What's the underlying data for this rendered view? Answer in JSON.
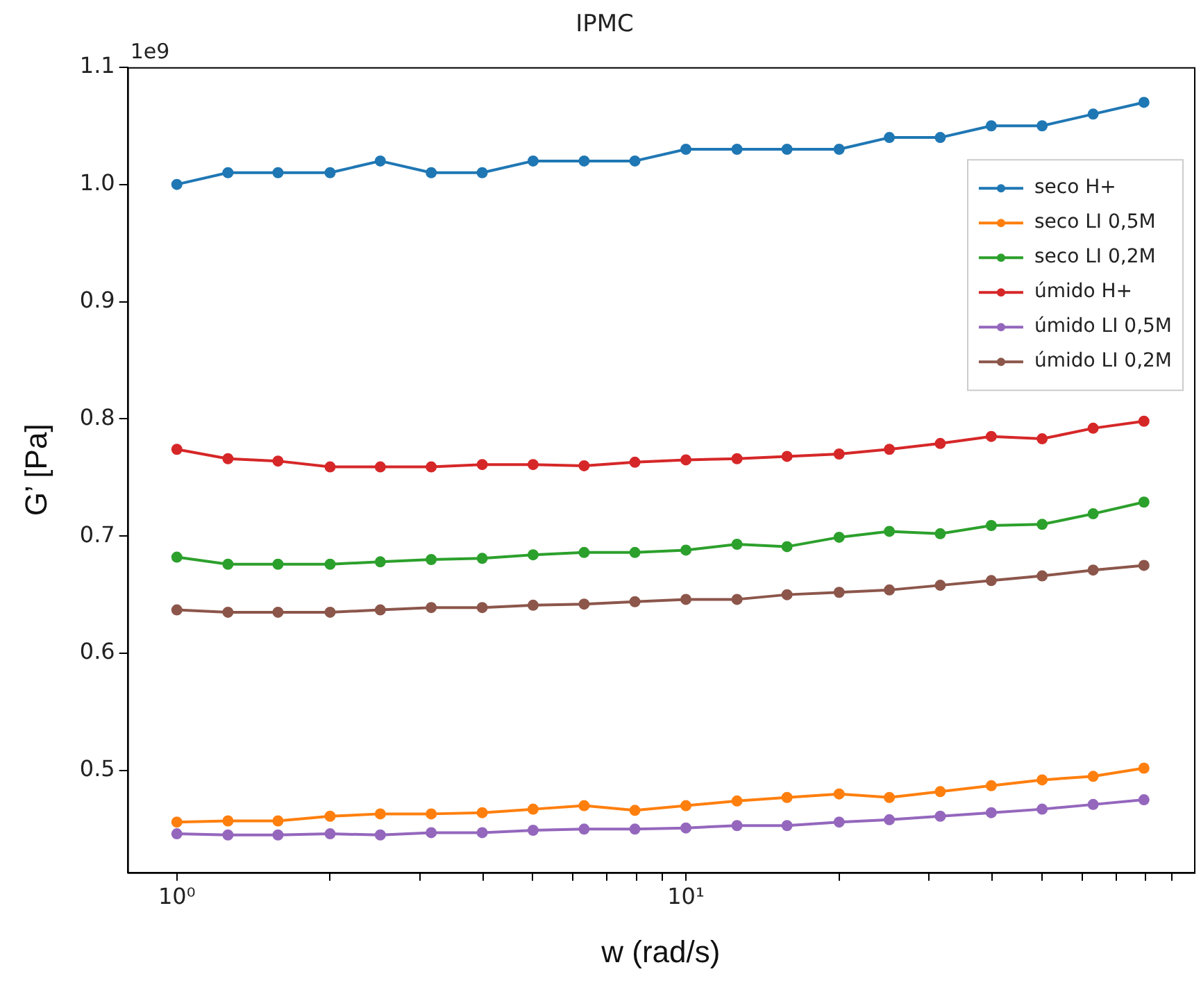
{
  "chart_data": {
    "type": "line",
    "title": "IPMC",
    "xlabel": "w (rad/s)",
    "ylabel": "G’ [Pa]",
    "annotations": [
      "1e9"
    ],
    "log": "x",
    "marker": "circle",
    "line_style": "solid",
    "grid": false,
    "legend": "right",
    "x": [
      1,
      1.26,
      1.58,
      2,
      2.51,
      3.16,
      3.98,
      5.01,
      6.31,
      7.94,
      10,
      12.6,
      15.8,
      20,
      25.1,
      31.6,
      39.8,
      50.1,
      63.1,
      79.4
    ],
    "xlim": [
      0.8,
      99.6
    ],
    "xticks": [
      {
        "value": 1,
        "label": "10⁰"
      },
      {
        "value": 2,
        "label": null
      },
      {
        "value": 3,
        "label": null
      },
      {
        "value": 4,
        "label": null
      },
      {
        "value": 5,
        "label": null
      },
      {
        "value": 6,
        "label": null
      },
      {
        "value": 7,
        "label": null
      },
      {
        "value": 8,
        "label": null
      },
      {
        "value": 9,
        "label": null
      },
      {
        "value": 10,
        "label": "10¹"
      },
      {
        "value": 20,
        "label": null
      },
      {
        "value": 30,
        "label": null
      },
      {
        "value": 40,
        "label": null
      },
      {
        "value": 50,
        "label": null
      },
      {
        "value": 60,
        "label": null
      },
      {
        "value": 70,
        "label": null
      },
      {
        "value": 80,
        "label": null
      },
      {
        "value": 90,
        "label": null
      }
    ],
    "ylim": [
      0.413,
      1.1
    ],
    "yticks": [
      0.5,
      0.6,
      0.7,
      0.8,
      0.9,
      {
        "value": 1,
        "label": "1.0"
      },
      1.1
    ],
    "series": [
      {
        "name": "seco H+",
        "color": "#1f77b4",
        "values": [
          1.0,
          1.01,
          1.01,
          1.01,
          1.02,
          1.01,
          1.01,
          1.02,
          1.02,
          1.02,
          1.03,
          1.03,
          1.03,
          1.03,
          1.04,
          1.04,
          1.05,
          1.05,
          1.06,
          1.07
        ]
      },
      {
        "name": "seco LI 0,5M",
        "color": "#ff7f0e",
        "values": [
          0.456,
          0.457,
          0.457,
          0.461,
          0.463,
          0.463,
          0.464,
          0.467,
          0.47,
          0.466,
          0.47,
          0.474,
          0.477,
          0.48,
          0.477,
          0.482,
          0.487,
          0.492,
          0.495,
          0.502
        ]
      },
      {
        "name": "seco LI 0,2M",
        "color": "#2ca02c",
        "values": [
          0.682,
          0.676,
          0.676,
          0.676,
          0.678,
          0.68,
          0.681,
          0.684,
          0.686,
          0.686,
          0.688,
          0.693,
          0.691,
          0.699,
          0.704,
          0.702,
          0.709,
          0.71,
          0.719,
          0.729
        ]
      },
      {
        "name": "úmido H+",
        "color": "#d62728",
        "values": [
          0.774,
          0.766,
          0.764,
          0.759,
          0.759,
          0.759,
          0.761,
          0.761,
          0.76,
          0.763,
          0.765,
          0.766,
          0.768,
          0.77,
          0.774,
          0.779,
          0.785,
          0.783,
          0.792,
          0.798
        ]
      },
      {
        "name": "úmido LI 0,5M",
        "color": "#9467bd",
        "values": [
          0.446,
          0.445,
          0.445,
          0.446,
          0.445,
          0.447,
          0.447,
          0.449,
          0.45,
          0.45,
          0.451,
          0.453,
          0.453,
          0.456,
          0.458,
          0.461,
          0.464,
          0.467,
          0.471,
          0.475
        ]
      },
      {
        "name": "úmido LI 0,2M",
        "color": "#8c564b",
        "values": [
          0.637,
          0.635,
          0.635,
          0.635,
          0.637,
          0.639,
          0.639,
          0.641,
          0.642,
          0.644,
          0.646,
          0.646,
          0.65,
          0.652,
          0.654,
          0.658,
          0.662,
          0.666,
          0.671,
          0.675
        ]
      }
    ]
  }
}
